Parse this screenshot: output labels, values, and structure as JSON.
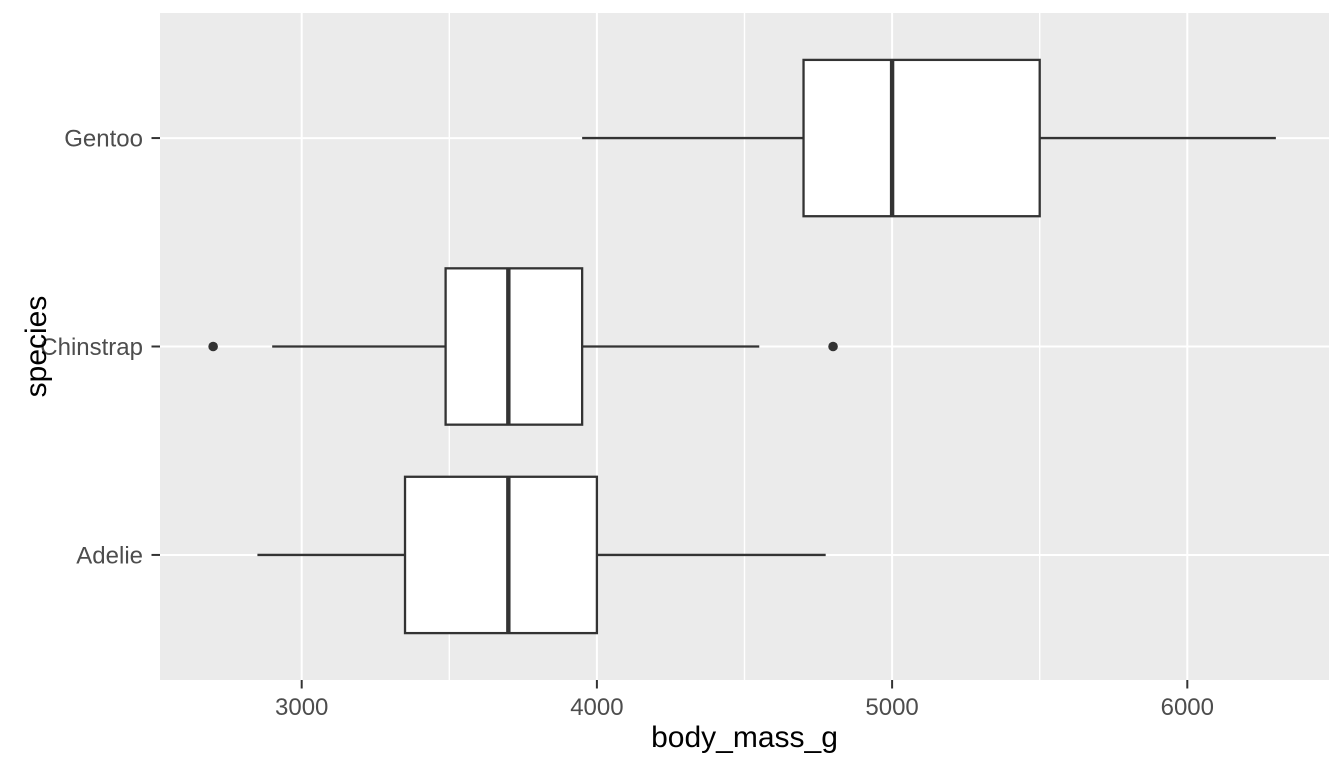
{
  "figure": {
    "background": "#FFFFFF",
    "panel_background": "#EBEBEB",
    "grid_color": "#FFFFFF",
    "box_stroke": "#333333",
    "box_fill": "#FFFFFF",
    "tick_color": "#333333",
    "tick_label_color": "#4D4D4D",
    "axis_title_color": "#000000"
  },
  "chart_data": {
    "type": "boxplot",
    "orientation": "horizontal",
    "title": "",
    "xlabel": "body_mass_g",
    "ylabel": "species",
    "xlim": [
      2520,
      6480
    ],
    "x_major_ticks": [
      3000,
      4000,
      5000,
      6000
    ],
    "x_tick_labels": [
      "3000",
      "4000",
      "5000",
      "6000"
    ],
    "x_minor_gridlines": [
      3500,
      4500,
      5500
    ],
    "grid": true,
    "legend_position": "none",
    "categories": [
      "Gentoo",
      "Chinstrap",
      "Adelie"
    ],
    "series": [
      {
        "category": "Gentoo",
        "whisker_low": 3950,
        "q1": 4700,
        "median": 5000,
        "q3": 5500,
        "whisker_high": 6300,
        "outliers": []
      },
      {
        "category": "Chinstrap",
        "whisker_low": 2900,
        "q1": 3487.5,
        "median": 3700,
        "q3": 3950,
        "whisker_high": 4550,
        "outliers": [
          2700,
          4800
        ]
      },
      {
        "category": "Adelie",
        "whisker_low": 2850,
        "q1": 3350,
        "median": 3700,
        "q3": 4000,
        "whisker_high": 4775,
        "outliers": []
      }
    ]
  }
}
